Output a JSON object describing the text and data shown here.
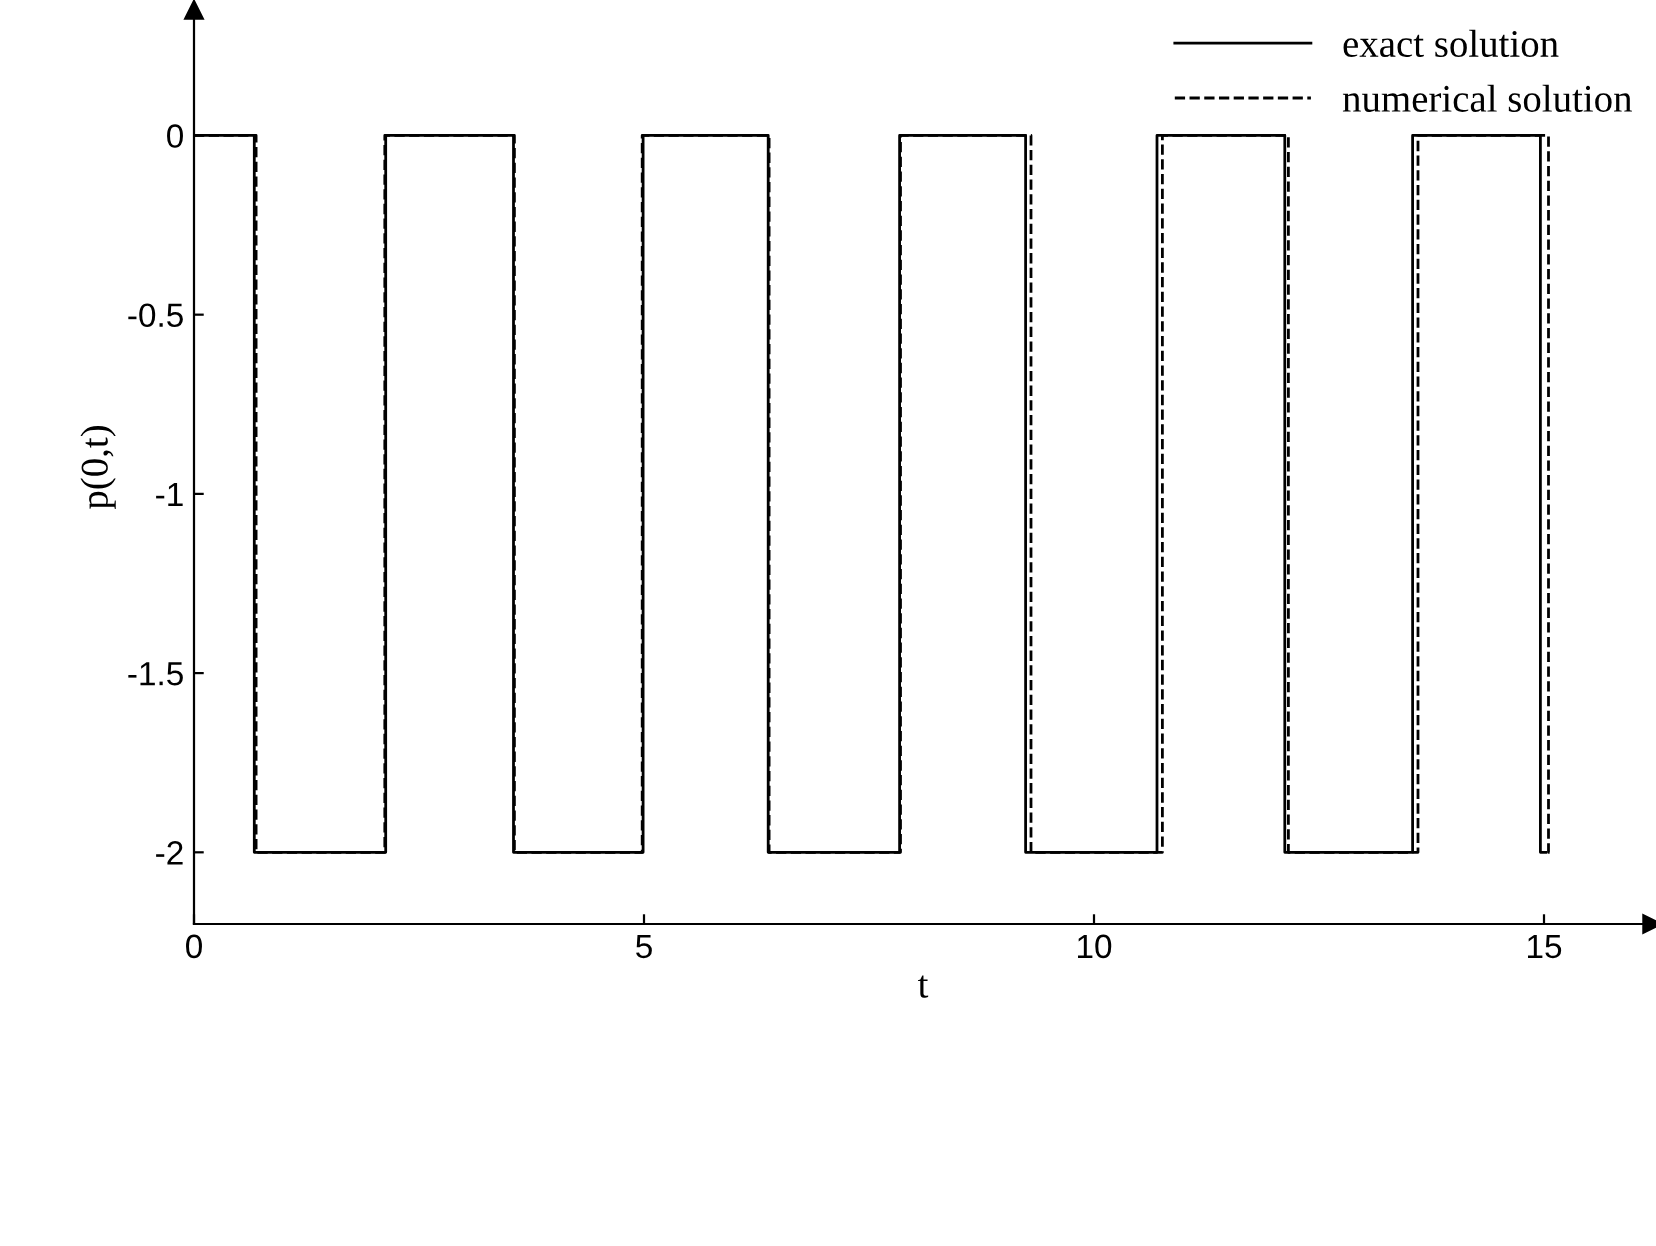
{
  "chart_data": {
    "type": "line",
    "xlabel": "t",
    "ylabel": "p(0,t)",
    "xlim": [
      0,
      16.2
    ],
    "ylim": [
      -2.2,
      0.35
    ],
    "xticks": [
      0,
      5,
      10,
      15
    ],
    "yticks": [
      0,
      -0.5,
      -1,
      -1.5,
      -2
    ],
    "legend": "top right",
    "grid": false,
    "marker": "none",
    "series": [
      {
        "name": "exact solution",
        "color": "#000000",
        "line_style": "solid",
        "x": [
          0,
          0.67,
          0.67,
          2.13,
          2.13,
          3.55,
          3.55,
          4.99,
          4.99,
          6.38,
          6.38,
          7.84,
          7.84,
          9.24,
          9.24,
          10.7,
          10.7,
          12.12,
          12.12,
          13.54,
          13.54,
          14.96,
          14.96,
          15.02
        ],
        "values": [
          0,
          0,
          -2,
          -2,
          0,
          0,
          -2,
          -2,
          0,
          0,
          -2,
          -2,
          0,
          0,
          -2,
          -2,
          0,
          0,
          -2,
          -2,
          0,
          0,
          -2,
          -2
        ]
      },
      {
        "name": "numerical solution",
        "color": "#000000",
        "line_style": "dashed",
        "x": [
          0,
          0.69,
          0.69,
          2.12,
          2.12,
          3.56,
          3.56,
          4.98,
          4.98,
          6.39,
          6.39,
          7.85,
          7.85,
          9.3,
          9.3,
          10.76,
          10.76,
          12.16,
          12.16,
          13.6,
          13.6,
          15.05,
          15.05,
          15.07
        ],
        "values": [
          0,
          0,
          -2,
          -2,
          0,
          0,
          -2,
          -2,
          0,
          0,
          -2,
          -2,
          0,
          0,
          -2,
          -2,
          0,
          0,
          -2,
          -2,
          0,
          0,
          -2,
          -2
        ]
      }
    ]
  }
}
